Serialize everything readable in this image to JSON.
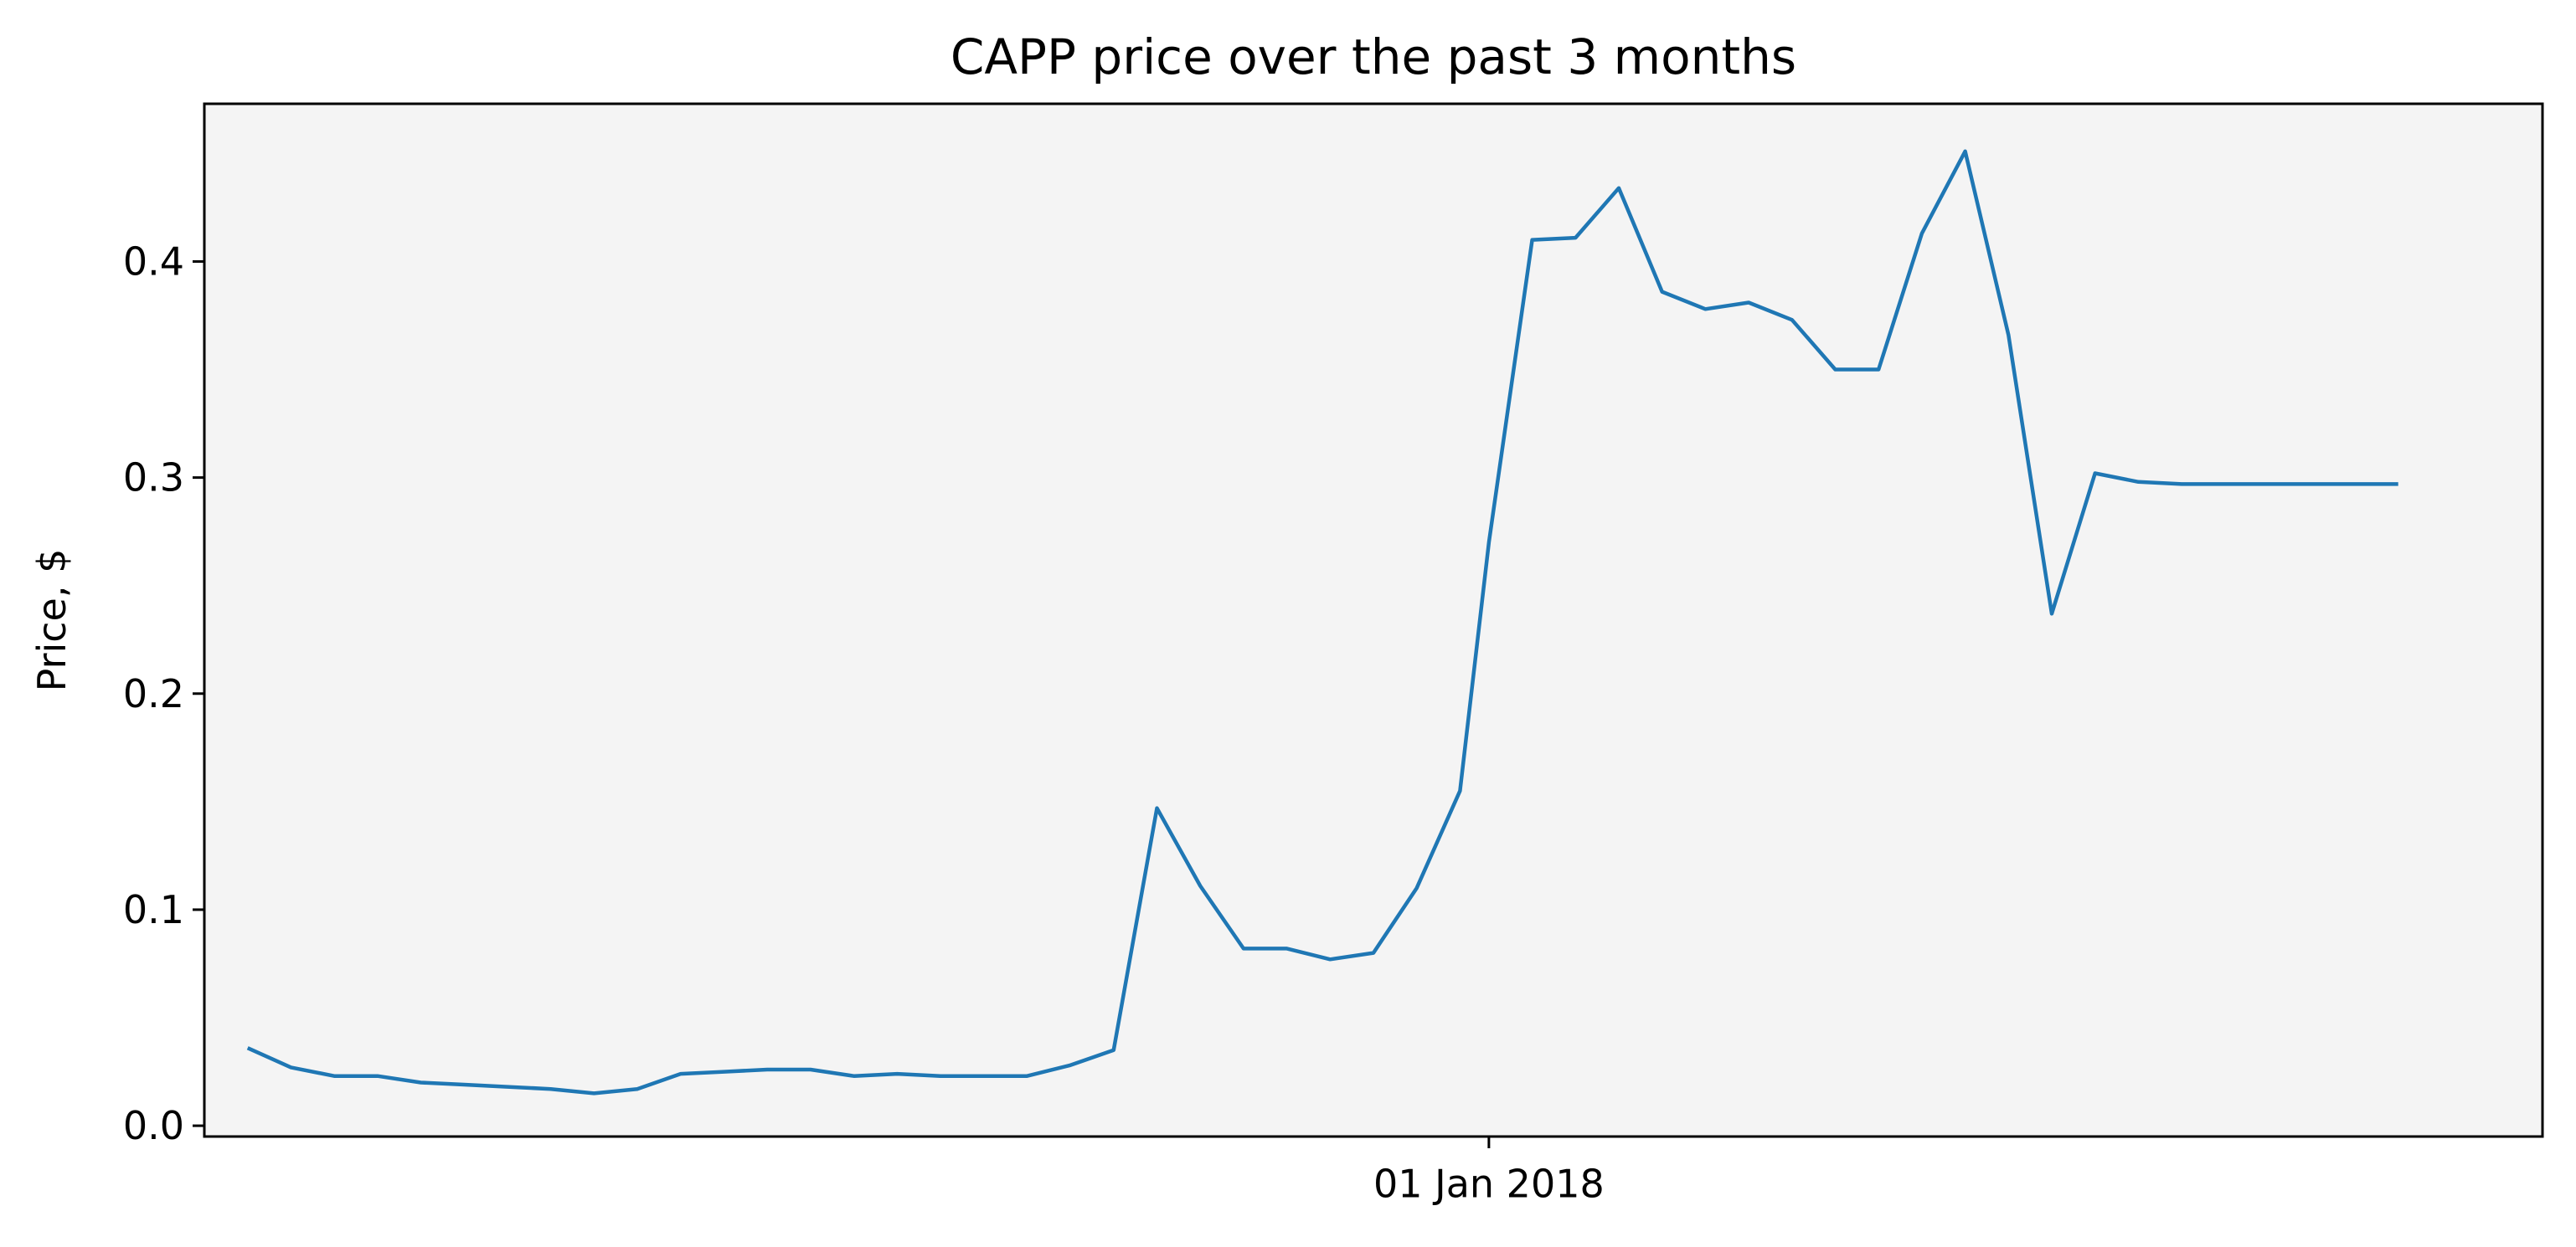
{
  "chart_data": {
    "type": "line",
    "title": "CAPP price over the past 3 months",
    "xlabel": "",
    "ylabel": "Price, $",
    "x_ticks": [
      {
        "label": "01 Jan 2018",
        "date": "2018-01-01"
      }
    ],
    "y_ticks": [
      "0.0",
      "0.1",
      "0.2",
      "0.3",
      "0.4"
    ],
    "ylim": [
      -0.005,
      0.473
    ],
    "xlim": [
      "2017-10-04",
      "2018-03-15"
    ],
    "grid": false,
    "legend": "none",
    "colors": {
      "line": "#1f77b4",
      "plot_bg": "#f4f4f4"
    },
    "series": [
      {
        "x": [
          "2017-10-07",
          "2017-10-10",
          "2017-10-13",
          "2017-10-16",
          "2017-10-19",
          "2017-10-22",
          "2017-10-25",
          "2017-10-28",
          "2017-10-31",
          "2017-11-03",
          "2017-11-06",
          "2017-11-09",
          "2017-11-12",
          "2017-11-15",
          "2017-11-18",
          "2017-11-21",
          "2017-11-24",
          "2017-11-27",
          "2017-11-30",
          "2017-12-03",
          "2017-12-06",
          "2017-12-09",
          "2017-12-12",
          "2017-12-15",
          "2017-12-18",
          "2017-12-21",
          "2017-12-24",
          "2017-12-27",
          "2017-12-30",
          "2018-01-01",
          "2018-01-04",
          "2018-01-07",
          "2018-01-10",
          "2018-01-13",
          "2018-01-16",
          "2018-01-19",
          "2018-01-22",
          "2018-01-25",
          "2018-01-28",
          "2018-01-31",
          "2018-02-03",
          "2018-02-06",
          "2018-02-09",
          "2018-02-12",
          "2018-02-15",
          "2018-02-18",
          "2018-02-21",
          "2018-02-24",
          "2018-02-27",
          "2018-03-02",
          "2018-03-05"
        ],
        "values": [
          0.036,
          0.027,
          0.023,
          0.023,
          0.02,
          0.019,
          0.018,
          0.017,
          0.015,
          0.017,
          0.024,
          0.025,
          0.026,
          0.026,
          0.023,
          0.024,
          0.023,
          0.023,
          0.023,
          0.028,
          0.035,
          0.147,
          0.111,
          0.082,
          0.082,
          0.077,
          0.08,
          0.11,
          0.155,
          0.27,
          0.41,
          0.411,
          0.434,
          0.386,
          0.378,
          0.381,
          0.373,
          0.35,
          0.35,
          0.413,
          0.451,
          0.366,
          0.237,
          0.302,
          0.298,
          0.297,
          0.297,
          0.297,
          0.297,
          0.297,
          0.297
        ]
      }
    ]
  }
}
